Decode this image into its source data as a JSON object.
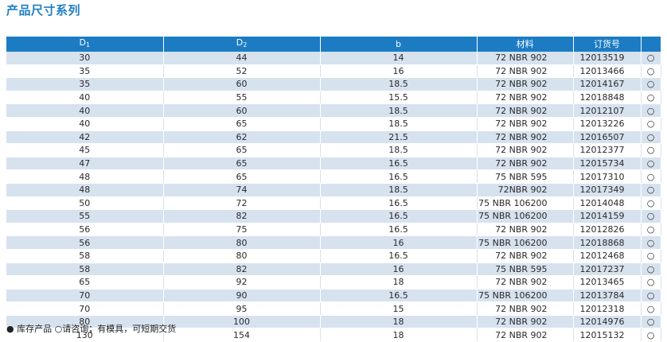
{
  "title": "产品尺寸系列",
  "table": {
    "headers": {
      "d1_main": "D",
      "d1_sub": "1",
      "d2_main": "D",
      "d2_sub": "2",
      "b": "b",
      "material": "材料",
      "order_no": "订货号",
      "availability": ""
    },
    "rows": [
      {
        "d1": "30",
        "d2": "44",
        "b": "14",
        "material": "72 NBR 902",
        "order_no": "12013519",
        "avail": "○"
      },
      {
        "d1": "35",
        "d2": "52",
        "b": "16",
        "material": "72 NBR 902",
        "order_no": "12013466",
        "avail": "○"
      },
      {
        "d1": "35",
        "d2": "60",
        "b": "18.5",
        "material": "72 NBR 902",
        "order_no": "12014167",
        "avail": "○"
      },
      {
        "d1": "40",
        "d2": "55",
        "b": "15.5",
        "material": "72 NBR 902",
        "order_no": "12018848",
        "avail": "○"
      },
      {
        "d1": "40",
        "d2": "60",
        "b": "18.5",
        "material": "72 NBR 902",
        "order_no": "12012107",
        "avail": "○"
      },
      {
        "d1": "40",
        "d2": "65",
        "b": "18.5",
        "material": "72 NBR 902",
        "order_no": "12013226",
        "avail": "○"
      },
      {
        "d1": "42",
        "d2": "62",
        "b": "21.5",
        "material": "72 NBR 902",
        "order_no": "12016507",
        "avail": "○"
      },
      {
        "d1": "45",
        "d2": "65",
        "b": "18.5",
        "material": "72 NBR 902",
        "order_no": "12012377",
        "avail": "○"
      },
      {
        "d1": "47",
        "d2": "65",
        "b": "16.5",
        "material": "72 NBR 902",
        "order_no": "12015734",
        "avail": "○"
      },
      {
        "d1": "48",
        "d2": "65",
        "b": "16.5",
        "material": "75 NBR 595",
        "order_no": "12017310",
        "avail": "○"
      },
      {
        "d1": "48",
        "d2": "74",
        "b": "18.5",
        "material": "72NBR 902",
        "order_no": "12017349",
        "avail": "○"
      },
      {
        "d1": "50",
        "d2": "72",
        "b": "16.5",
        "material": "75 NBR 106200",
        "order_no": "12014048",
        "avail": "○"
      },
      {
        "d1": "55",
        "d2": "82",
        "b": "16.5",
        "material": "75 NBR 106200",
        "order_no": "12014159",
        "avail": "○"
      },
      {
        "d1": "56",
        "d2": "75",
        "b": "16.5",
        "material": "72 NBR 902",
        "order_no": "12012826",
        "avail": "○"
      },
      {
        "d1": "56",
        "d2": "80",
        "b": "16",
        "material": "75 NBR 106200",
        "order_no": "12018868",
        "avail": "○"
      },
      {
        "d1": "58",
        "d2": "80",
        "b": "16.5",
        "material": "72 NBR 902",
        "order_no": "12012468",
        "avail": "○"
      },
      {
        "d1": "58",
        "d2": "82",
        "b": "16",
        "material": "75 NBR 595",
        "order_no": "12017237",
        "avail": "○"
      },
      {
        "d1": "65",
        "d2": "92",
        "b": "18",
        "material": "72 NBR 902",
        "order_no": "12013465",
        "avail": "○"
      },
      {
        "d1": "70",
        "d2": "90",
        "b": "16.5",
        "material": "75 NBR 106200",
        "order_no": "12013784",
        "avail": "○"
      },
      {
        "d1": "70",
        "d2": "95",
        "b": "15",
        "material": "72 NBR 902",
        "order_no": "12012318",
        "avail": "○"
      },
      {
        "d1": "80",
        "d2": "100",
        "b": "18",
        "material": "72 NBR 902",
        "order_no": "12014976",
        "avail": "○"
      },
      {
        "d1": "130",
        "d2": "154",
        "b": "18",
        "material": "72 NBR 902",
        "order_no": "12015132",
        "avail": "○"
      }
    ]
  },
  "note": "● 库存产品 ○请咨询；有模具，可短期交货",
  "colors": {
    "accent": "#1b7cc4",
    "title": "#1f7fc4",
    "stripe": "#d7e2ef"
  }
}
